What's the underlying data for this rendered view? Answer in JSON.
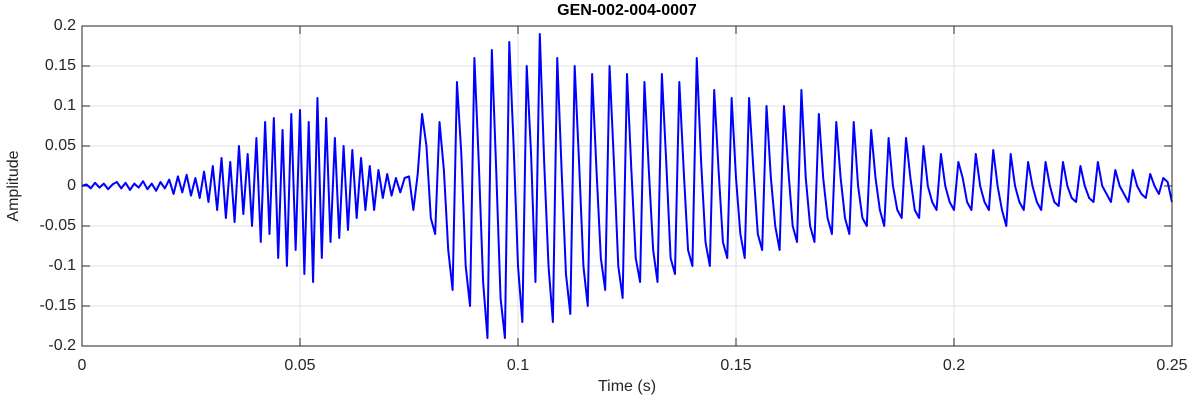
{
  "chart_data": {
    "type": "line",
    "title": "GEN-002-004-0007",
    "xlabel": "Time (s)",
    "ylabel": "Amplitude",
    "color": "#0000ff",
    "grid": true,
    "xlim": [
      0,
      0.25
    ],
    "xticks": [
      0,
      0.05,
      0.1,
      0.15,
      0.2,
      0.25
    ],
    "ylim": [
      -0.2,
      0.2
    ],
    "yticks": [
      -0.2,
      -0.15,
      -0.1,
      -0.05,
      0,
      0.05,
      0.1,
      0.15,
      0.2
    ],
    "x": [
      0,
      0.001,
      0.002,
      0.003,
      0.004,
      0.005,
      0.006,
      0.007,
      0.008,
      0.009,
      0.01,
      0.011,
      0.012,
      0.013,
      0.014,
      0.015,
      0.016,
      0.017,
      0.018,
      0.019,
      0.02,
      0.021,
      0.022,
      0.023,
      0.024,
      0.025,
      0.026,
      0.027,
      0.028,
      0.029,
      0.03,
      0.031,
      0.032,
      0.033,
      0.034,
      0.035,
      0.036,
      0.037,
      0.038,
      0.039,
      0.04,
      0.041,
      0.042,
      0.043,
      0.044,
      0.045,
      0.046,
      0.047,
      0.048,
      0.049,
      0.05,
      0.051,
      0.052,
      0.053,
      0.054,
      0.055,
      0.056,
      0.057,
      0.058,
      0.059,
      0.06,
      0.061,
      0.062,
      0.063,
      0.064,
      0.065,
      0.066,
      0.067,
      0.068,
      0.069,
      0.07,
      0.071,
      0.072,
      0.073,
      0.074,
      0.075,
      0.076,
      0.077,
      0.078,
      0.079,
      0.08,
      0.081,
      0.082,
      0.083,
      0.084,
      0.085,
      0.086,
      0.087,
      0.088,
      0.089,
      0.09,
      0.091,
      0.092,
      0.093,
      0.094,
      0.095,
      0.096,
      0.097,
      0.098,
      0.099,
      0.1,
      0.101,
      0.102,
      0.103,
      0.104,
      0.105,
      0.106,
      0.107,
      0.108,
      0.109,
      0.11,
      0.111,
      0.112,
      0.113,
      0.114,
      0.115,
      0.116,
      0.117,
      0.118,
      0.119,
      0.12,
      0.121,
      0.122,
      0.123,
      0.124,
      0.125,
      0.126,
      0.127,
      0.128,
      0.129,
      0.13,
      0.131,
      0.132,
      0.133,
      0.134,
      0.135,
      0.136,
      0.137,
      0.138,
      0.139,
      0.14,
      0.141,
      0.142,
      0.143,
      0.144,
      0.145,
      0.146,
      0.147,
      0.148,
      0.149,
      0.15,
      0.151,
      0.152,
      0.153,
      0.154,
      0.155,
      0.156,
      0.157,
      0.158,
      0.159,
      0.16,
      0.161,
      0.162,
      0.163,
      0.164,
      0.165,
      0.166,
      0.167,
      0.168,
      0.169,
      0.17,
      0.171,
      0.172,
      0.173,
      0.174,
      0.175,
      0.176,
      0.177,
      0.178,
      0.179,
      0.18,
      0.181,
      0.182,
      0.183,
      0.184,
      0.185,
      0.186,
      0.187,
      0.188,
      0.189,
      0.19,
      0.191,
      0.192,
      0.193,
      0.194,
      0.195,
      0.196,
      0.197,
      0.198,
      0.199,
      0.2,
      0.201,
      0.202,
      0.203,
      0.204,
      0.205,
      0.206,
      0.207,
      0.208,
      0.209,
      0.21,
      0.211,
      0.212,
      0.213,
      0.214,
      0.215,
      0.216,
      0.217,
      0.218,
      0.219,
      0.22,
      0.221,
      0.222,
      0.223,
      0.224,
      0.225,
      0.226,
      0.227,
      0.228,
      0.229,
      0.23,
      0.231,
      0.232,
      0.233,
      0.234,
      0.235,
      0.236,
      0.237,
      0.238,
      0.239,
      0.24,
      0.241,
      0.242,
      0.243,
      0.244,
      0.245,
      0.246,
      0.247,
      0.248,
      0.249,
      0.25
    ],
    "values": [
      0,
      0.002,
      -0.003,
      0.004,
      -0.002,
      0.003,
      -0.004,
      0.002,
      0.005,
      -0.003,
      0.004,
      -0.005,
      0.003,
      -0.002,
      0.006,
      -0.004,
      0.003,
      -0.006,
      0.005,
      -0.003,
      0.008,
      -0.01,
      0.012,
      -0.008,
      0.014,
      -0.012,
      0.01,
      -0.015,
      0.018,
      -0.02,
      0.025,
      -0.03,
      0.035,
      -0.04,
      0.03,
      -0.045,
      0.05,
      -0.035,
      0.04,
      -0.05,
      0.06,
      -0.07,
      0.08,
      -0.06,
      0.085,
      -0.09,
      0.07,
      -0.1,
      0.09,
      -0.08,
      0.095,
      -0.11,
      0.08,
      -0.12,
      0.11,
      -0.09,
      0.085,
      -0.07,
      0.06,
      -0.065,
      0.05,
      -0.055,
      0.045,
      -0.04,
      0.035,
      -0.03,
      0.025,
      -0.03,
      0.02,
      -0.015,
      0.015,
      -0.012,
      0.01,
      -0.008,
      0.01,
      0.012,
      -0.03,
      0.015,
      0.09,
      0.05,
      -0.04,
      -0.06,
      0.08,
      0.02,
      -0.08,
      -0.13,
      0.13,
      0.04,
      -0.1,
      -0.15,
      0.16,
      0.03,
      -0.12,
      -0.19,
      0.17,
      0.02,
      -0.14,
      -0.19,
      0.18,
      0.05,
      -0.1,
      -0.17,
      0.15,
      0.04,
      -0.12,
      0.19,
      0.03,
      -0.1,
      -0.17,
      0.16,
      0.02,
      -0.11,
      -0.16,
      0.15,
      0.03,
      -0.1,
      -0.15,
      0.14,
      0.02,
      -0.09,
      -0.13,
      0.15,
      0.03,
      -0.1,
      -0.14,
      0.14,
      0.02,
      -0.09,
      -0.12,
      0.13,
      0.02,
      -0.08,
      -0.12,
      0.14,
      0.03,
      -0.09,
      -0.11,
      0.13,
      0.02,
      -0.08,
      -0.1,
      0.16,
      0.03,
      -0.07,
      -0.1,
      0.12,
      0.02,
      -0.07,
      -0.09,
      0.11,
      0.01,
      -0.06,
      -0.09,
      0.11,
      0.02,
      -0.06,
      -0.08,
      0.1,
      0.01,
      -0.05,
      -0.08,
      0.1,
      0.02,
      -0.05,
      -0.07,
      0.12,
      0.01,
      -0.05,
      -0.07,
      0.09,
      0.01,
      -0.04,
      -0.06,
      0.08,
      0.01,
      -0.04,
      -0.06,
      0.08,
      0,
      -0.04,
      -0.05,
      0.07,
      0.01,
      -0.03,
      -0.05,
      0.06,
      0,
      -0.03,
      -0.04,
      0.06,
      0.01,
      -0.03,
      -0.04,
      0.05,
      0,
      -0.02,
      -0.03,
      0.04,
      0,
      -0.02,
      -0.03,
      0.03,
      0.01,
      -0.02,
      -0.03,
      0.04,
      0,
      -0.02,
      -0.03,
      0.045,
      0,
      -0.03,
      -0.05,
      0.04,
      0,
      -0.02,
      -0.03,
      0.03,
      0,
      -0.02,
      -0.03,
      0.03,
      0,
      -0.02,
      -0.025,
      0.03,
      0,
      -0.015,
      -0.02,
      0.025,
      0,
      -0.015,
      -0.02,
      0.03,
      0,
      -0.01,
      -0.02,
      0.02,
      0,
      -0.01,
      -0.02,
      0.02,
      0,
      -0.01,
      -0.015,
      0.015,
      0,
      -0.01,
      0.01,
      0.005,
      -0.02
    ]
  }
}
